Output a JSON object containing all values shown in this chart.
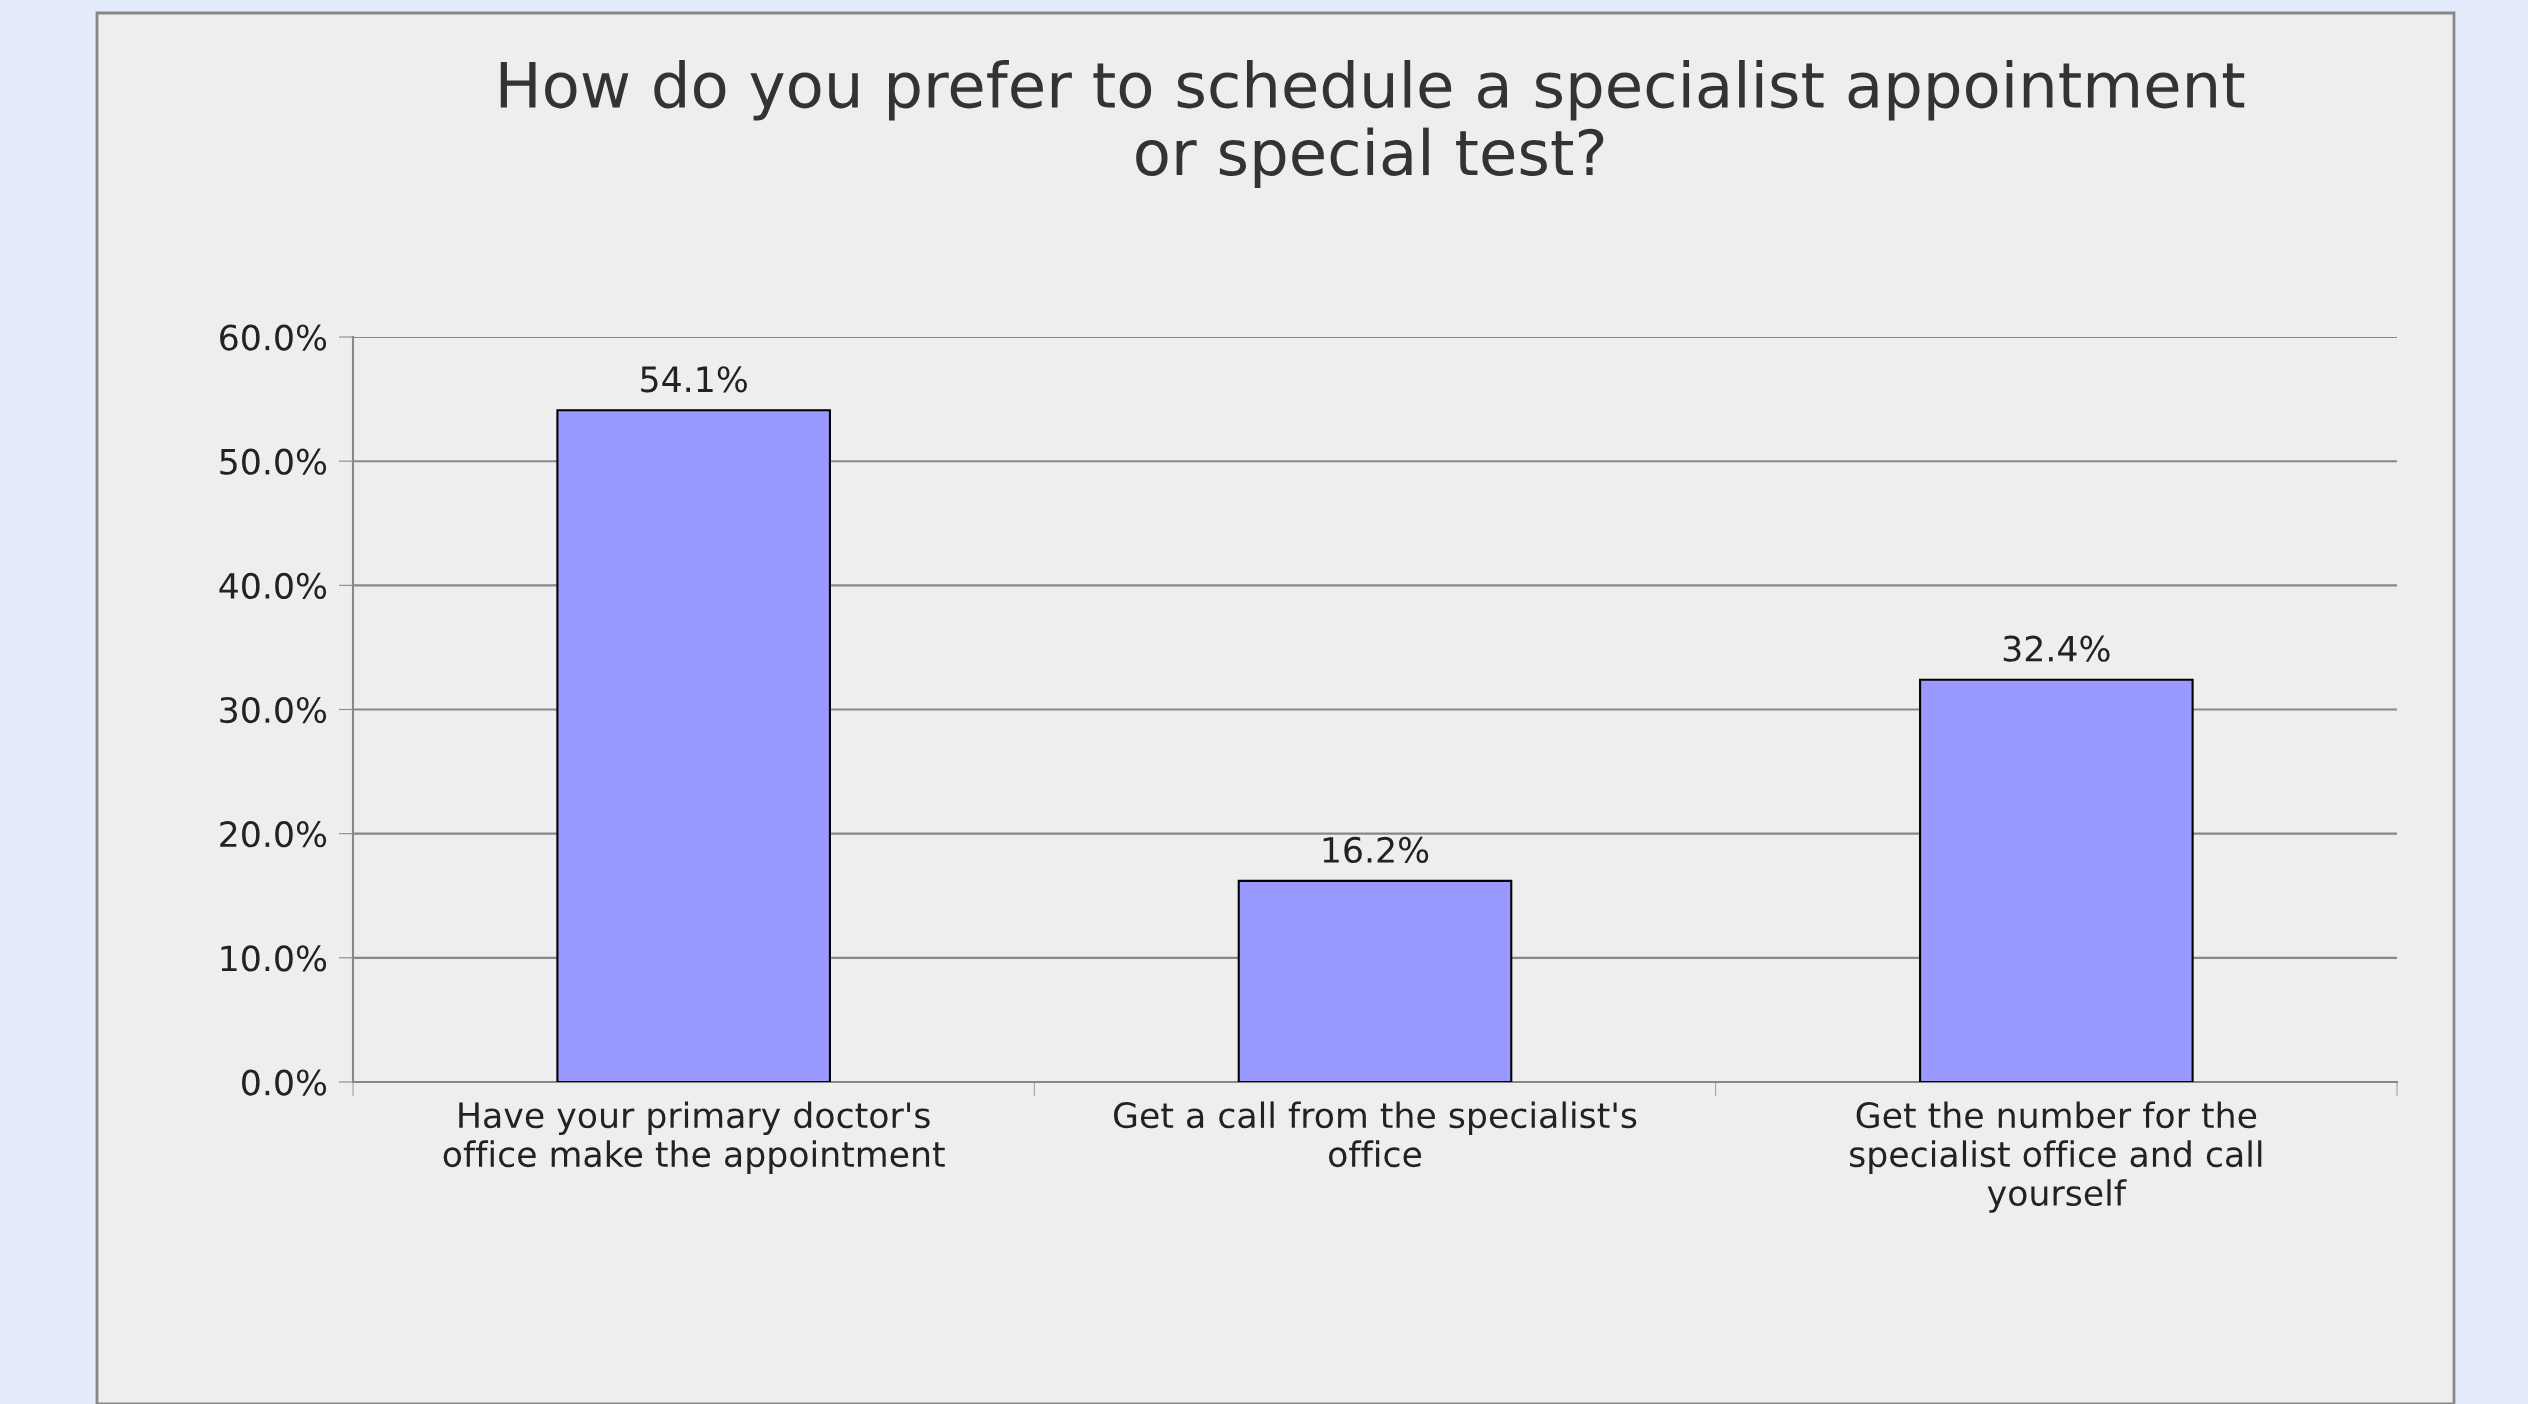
{
  "chart_data": {
    "type": "bar",
    "title": "How do you prefer to schedule a specialist appointment\nor special test?",
    "categories": [
      "Have your primary doctor's\noffice make the appointment",
      "Get a call from the specialist's\noffice",
      "Get the number for the\nspecialist office and call\nyourself"
    ],
    "values": [
      54.1,
      16.2,
      32.4
    ],
    "color": "#9999ff",
    "value_labels": [
      "54.1%",
      "16.2%",
      "32.4%"
    ],
    "ylim": [
      0,
      60
    ],
    "yticks": [
      {
        "value": 0,
        "label": "0.0%"
      },
      {
        "value": 10,
        "label": "10.0%"
      },
      {
        "value": 20,
        "label": "20.0%"
      },
      {
        "value": 30,
        "label": "30.0%"
      },
      {
        "value": 40,
        "label": "40.0%"
      },
      {
        "value": 50,
        "label": "50.0%"
      },
      {
        "value": 60,
        "label": "60.0%"
      }
    ],
    "grid": "y",
    "legend": false
  }
}
